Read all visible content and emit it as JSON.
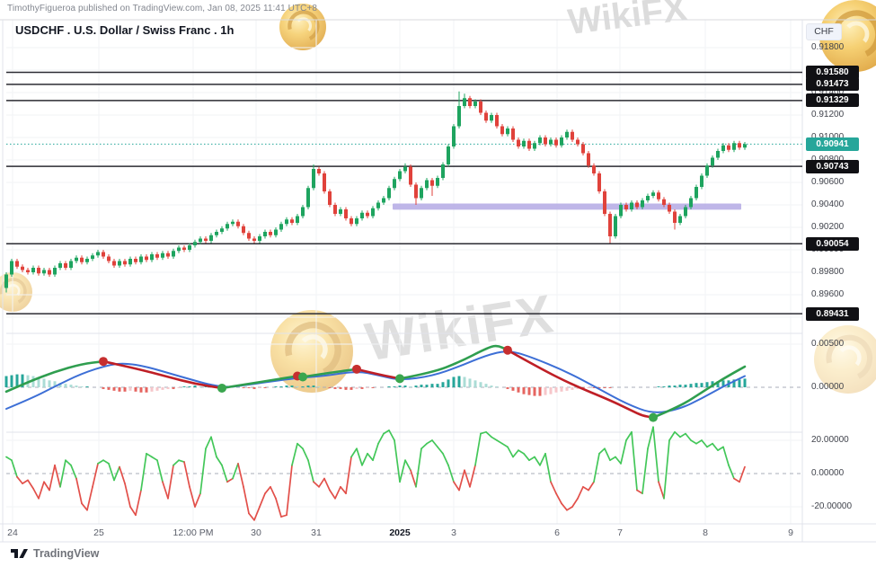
{
  "header": {
    "attribution": "TimothyFigueroa published on TradingView.com, Jan 08, 2025 11:41 UTC+8",
    "title": "USDCHF . U.S. Dollar / Swiss Franc . 1h"
  },
  "watermark": {
    "text": "WikiFX"
  },
  "footer": {
    "brand": "TradingView"
  },
  "price_axis": {
    "currency": "CHF",
    "ticks": [
      {
        "label": "0.91800",
        "price": 0.918
      },
      {
        "label": "0.91600",
        "price": 0.916
      },
      {
        "label": "0.91400",
        "price": 0.914
      },
      {
        "label": "0.91200",
        "price": 0.912
      },
      {
        "label": "0.91000",
        "price": 0.91
      },
      {
        "label": "0.90800",
        "price": 0.908
      },
      {
        "label": "0.90600",
        "price": 0.906
      },
      {
        "label": "0.90400",
        "price": 0.904
      },
      {
        "label": "0.90200",
        "price": 0.902
      },
      {
        "label": "0.90000",
        "price": 0.9
      },
      {
        "label": "0.89800",
        "price": 0.898
      },
      {
        "label": "0.89600",
        "price": 0.896
      },
      {
        "label": "0.89400",
        "price": 0.894
      }
    ],
    "badges": [
      {
        "label": "0.91580",
        "price": 0.9158,
        "style": "level"
      },
      {
        "label": "0.91473",
        "price": 0.91473,
        "style": "level"
      },
      {
        "label": "0.91329",
        "price": 0.91329,
        "style": "level"
      },
      {
        "label": "0.90941",
        "price": 0.90941,
        "style": "current"
      },
      {
        "label": "0.90743",
        "price": 0.90743,
        "style": "level"
      },
      {
        "label": "0.90054",
        "price": 0.90054,
        "style": "level"
      },
      {
        "label": "0.89431",
        "price": 0.89431,
        "style": "level"
      }
    ]
  },
  "indicator_axis": {
    "macd_ticks": [
      {
        "label": "0.00500",
        "value": 0.005
      },
      {
        "label": "0.00000",
        "value": 0
      }
    ],
    "osc_ticks": [
      {
        "label": "20.00000",
        "value": 20
      },
      {
        "label": "0.00000",
        "value": 0
      },
      {
        "label": "-20.00000",
        "value": -20
      }
    ]
  },
  "time_axis": {
    "ticks": [
      {
        "label": "24",
        "x": 14,
        "bold": false
      },
      {
        "label": "25",
        "x": 110,
        "bold": false
      },
      {
        "label": "12:00 PM",
        "x": 215,
        "bold": false
      },
      {
        "label": "30",
        "x": 285,
        "bold": false
      },
      {
        "label": "31",
        "x": 352,
        "bold": false
      },
      {
        "label": "2025",
        "x": 445,
        "bold": true
      },
      {
        "label": "3",
        "x": 505,
        "bold": false
      },
      {
        "label": "6",
        "x": 620,
        "bold": false
      },
      {
        "label": "7",
        "x": 690,
        "bold": false
      },
      {
        "label": "8",
        "x": 785,
        "bold": false
      },
      {
        "label": "9",
        "x": 880,
        "bold": false
      }
    ]
  },
  "colors": {
    "up": "#1ea45f",
    "down": "#e0423b",
    "current_badge": "#26a69a",
    "level_badge": "#101014",
    "band": "#b4a9e4",
    "level_line": "#2b2b33",
    "grid": "#f2f3f5",
    "divider": "#e0e3eb",
    "macd_rise": "#2f9e4f",
    "macd_fall": "#bf1f26",
    "macd_signal": "#3d6fd6",
    "hist_pos": "#26a69a",
    "hist_pos_weak": "#abdcd6",
    "hist_neg": "#e66560",
    "hist_neg_weak": "#f6c6ca",
    "dot_red": "#c62f2f",
    "dot_green": "#3aa64e",
    "osc_pos": "#43c759",
    "osc_neg": "#e2504a",
    "zero_dash": "#a9aeb8",
    "gold": "#eec04f"
  },
  "chart_data": [
    {
      "type": "candlestick",
      "symbol": "USDCHF",
      "name": "U.S. Dollar / Swiss Franc",
      "timeframe": "1h",
      "pip": 0.0001,
      "ylim": [
        0.8926,
        0.9205
      ],
      "current_price": 0.90941,
      "levels": [
        0.9158,
        0.91473,
        0.91329,
        0.90743,
        0.90054,
        0.89431
      ],
      "first_open_pips": 8966,
      "default_wick_pips": 2,
      "closes_pips": [
        8978,
        8990,
        8985,
        8982,
        8980,
        8984,
        8979,
        8982,
        8978,
        8984,
        8988,
        8984,
        8990,
        8993,
        8989,
        8992,
        8995,
        8998,
        8994,
        8990,
        8986,
        8990,
        8987,
        8992,
        8989,
        8994,
        8991,
        8996,
        8993,
        8997,
        8994,
        8999,
        9002,
        9000,
        9004,
        9007,
        9010,
        9008,
        9013,
        9016,
        9019,
        9023,
        9025,
        9021,
        9015,
        9010,
        9008,
        9012,
        9016,
        9013,
        9018,
        9023,
        9027,
        9024,
        9030,
        9038,
        9055,
        9072,
        9068,
        9052,
        9040,
        9032,
        9036,
        9028,
        9023,
        9028,
        9033,
        9030,
        9037,
        9042,
        9046,
        9055,
        9063,
        9070,
        9074,
        9058,
        9046,
        9055,
        9062,
        9057,
        9064,
        9076,
        9092,
        9110,
        9128,
        9135,
        9128,
        9132,
        9122,
        9115,
        9120,
        9110,
        9103,
        9108,
        9098,
        9092,
        9097,
        9090,
        9095,
        9100,
        9094,
        9098,
        9093,
        9100,
        9105,
        9098,
        9094,
        9086,
        9075,
        9068,
        9052,
        9032,
        9012,
        9030,
        9040,
        9036,
        9042,
        9038,
        9044,
        9048,
        9051,
        9045,
        9040,
        9034,
        9024,
        9030,
        9038,
        9046,
        9056,
        9066,
        9075,
        9082,
        9088,
        9093,
        9089,
        9095,
        9091,
        9094
      ],
      "wick_overrides_pips": {
        "0": {
          "low": 8962
        },
        "57": {
          "high": 9076
        },
        "74": {
          "high": 9077
        },
        "76": {
          "low": 9040
        },
        "79": {
          "low": 9048
        },
        "84": {
          "high": 9141
        },
        "85": {
          "high": 9139
        },
        "112": {
          "low": 9006
        },
        "124": {
          "low": 9018
        }
      },
      "highlight_band": {
        "start_index": 72,
        "end_index": 136,
        "top_price": 0.90412,
        "bottom_price": 0.90365
      }
    },
    {
      "type": "macd_custom",
      "ylim": [
        -0.0052,
        0.0062
      ],
      "hist_unit": 0.0001,
      "histogram": [
        13,
        14,
        15,
        15,
        14,
        13,
        12,
        10,
        8,
        7,
        5,
        4,
        3,
        2,
        1,
        1,
        0,
        0,
        -2,
        -3,
        -4,
        -5,
        -5,
        -4,
        -5,
        -6,
        -6,
        -5,
        -4,
        -3,
        -2,
        -2,
        -1,
        1,
        1,
        2,
        1,
        1,
        2,
        1,
        1,
        1,
        0,
        0,
        -1,
        -1,
        -2,
        -1,
        -1,
        0,
        1,
        1,
        2,
        2,
        1,
        1,
        2,
        2,
        1,
        0,
        -1,
        -2,
        -2,
        -3,
        -3,
        -2,
        -2,
        -1,
        -1,
        0,
        0,
        1,
        1,
        2,
        2,
        1,
        2,
        3,
        3,
        4,
        4,
        6,
        9,
        12,
        13,
        12,
        10,
        8,
        6,
        4,
        2,
        1,
        0,
        -2,
        -4,
        -6,
        -8,
        -9,
        -10,
        -10,
        -9,
        -8,
        -6,
        -5,
        -4,
        -3,
        -2,
        -2,
        -1,
        -1,
        -1,
        -1,
        -1,
        0,
        0,
        0,
        0,
        0,
        0,
        0,
        0,
        1,
        1,
        2,
        2,
        3,
        3,
        4,
        5,
        5,
        6,
        7,
        7,
        8,
        8,
        9,
        9,
        10
      ],
      "main_line": [
        [
          0,
          -0.0005
        ],
        [
          4,
          0.0006
        ],
        [
          9,
          0.0018
        ],
        [
          14,
          0.0027
        ],
        [
          18,
          0.003
        ],
        [
          24,
          0.0022
        ],
        [
          30,
          0.0012
        ],
        [
          35,
          0.0004
        ],
        [
          40,
          -0.0001
        ],
        [
          45,
          0.0004
        ],
        [
          50,
          0.0009
        ],
        [
          54,
          0.0013
        ],
        [
          55,
          0.0012
        ],
        [
          59,
          0.0016
        ],
        [
          65,
          0.0021
        ],
        [
          69,
          0.0015
        ],
        [
          73,
          0.001
        ],
        [
          79,
          0.0017
        ],
        [
          84,
          0.0029
        ],
        [
          89,
          0.0045
        ],
        [
          91,
          0.0049
        ],
        [
          93,
          0.0043
        ],
        [
          99,
          0.0022
        ],
        [
          105,
          0.0003
        ],
        [
          112,
          -0.0015
        ],
        [
          116,
          -0.0027
        ],
        [
          118,
          -0.0033
        ],
        [
          120,
          -0.0035
        ],
        [
          125,
          -0.0022
        ],
        [
          129,
          -0.0006
        ],
        [
          133,
          0.001
        ],
        [
          137,
          0.0024
        ]
      ],
      "signal_line": [
        [
          0,
          -0.0025
        ],
        [
          5,
          -0.0012
        ],
        [
          9,
          0.0001
        ],
        [
          14,
          0.0016
        ],
        [
          19,
          0.0026
        ],
        [
          22,
          0.0028
        ],
        [
          26,
          0.0024
        ],
        [
          32,
          0.0013
        ],
        [
          40,
          -0.0001
        ],
        [
          45,
          0.0003
        ],
        [
          54,
          0.0011
        ],
        [
          59,
          0.0013
        ],
        [
          65,
          0.0019
        ],
        [
          69,
          0.0014
        ],
        [
          73,
          0.0008
        ],
        [
          79,
          0.0013
        ],
        [
          84,
          0.0024
        ],
        [
          89,
          0.0037
        ],
        [
          93,
          0.0043
        ],
        [
          97,
          0.0036
        ],
        [
          104,
          0.0018
        ],
        [
          110,
          -0.0002
        ],
        [
          115,
          -0.0019
        ],
        [
          120,
          -0.0031
        ],
        [
          125,
          -0.0025
        ],
        [
          129,
          -0.0013
        ],
        [
          133,
          0.0001
        ],
        [
          137,
          0.0013
        ]
      ],
      "segment_boundaries": [
        0,
        18,
        40,
        54,
        55,
        65,
        73,
        93,
        120,
        137
      ],
      "reversal_dots": [
        {
          "index": 18,
          "value": 0.003,
          "color": "red"
        },
        {
          "index": 40,
          "value": -0.0001,
          "color": "green"
        },
        {
          "index": 54,
          "value": 0.0013,
          "color": "red"
        },
        {
          "index": 55,
          "value": 0.0012,
          "color": "green"
        },
        {
          "index": 65,
          "value": 0.0021,
          "color": "red"
        },
        {
          "index": 73,
          "value": 0.001,
          "color": "green"
        },
        {
          "index": 93,
          "value": 0.0043,
          "color": "red"
        },
        {
          "index": 120,
          "value": -0.0035,
          "color": "green"
        }
      ]
    },
    {
      "type": "oscillator_line",
      "ylim": [
        -30,
        30
      ],
      "values": [
        10,
        8,
        -2,
        -6,
        -4,
        -9,
        -15,
        -5,
        -10,
        5,
        -8,
        8,
        5,
        -3,
        -18,
        -22,
        -8,
        6,
        8,
        6,
        -4,
        4,
        -6,
        -20,
        -25,
        -10,
        12,
        10,
        8,
        -5,
        -15,
        5,
        8,
        7,
        -8,
        -20,
        -12,
        15,
        22,
        10,
        5,
        -5,
        -3,
        6,
        -8,
        -24,
        -28,
        -20,
        -12,
        -8,
        -15,
        -26,
        -25,
        5,
        18,
        15,
        8,
        -5,
        -8,
        -3,
        -10,
        -15,
        -8,
        -12,
        10,
        15,
        5,
        12,
        8,
        18,
        24,
        26,
        20,
        -5,
        8,
        2,
        -8,
        15,
        18,
        20,
        16,
        12,
        5,
        -5,
        -10,
        2,
        -8,
        5,
        24,
        25,
        22,
        20,
        18,
        16,
        10,
        14,
        12,
        8,
        10,
        5,
        12,
        -5,
        -12,
        -18,
        -22,
        -20,
        -15,
        -8,
        -10,
        -5,
        12,
        15,
        8,
        10,
        6,
        20,
        25,
        -10,
        -12,
        15,
        28,
        -5,
        -15,
        20,
        25,
        22,
        24,
        20,
        18,
        20,
        16,
        18,
        14,
        16,
        5,
        -3,
        -5,
        4
      ]
    }
  ]
}
